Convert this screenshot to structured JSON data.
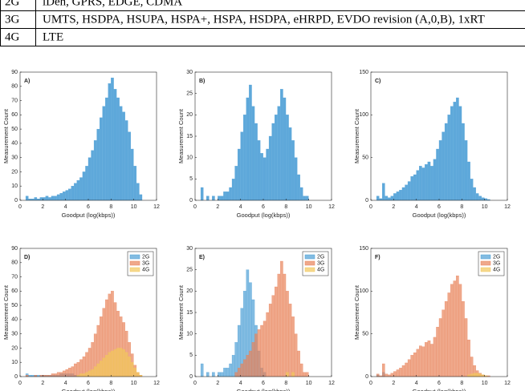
{
  "table": {
    "rows": [
      [
        "2G",
        "iDen, GPRS, EDGE, CDMA"
      ],
      [
        "3G",
        "UMTS, HSDPA, HSUPA, HSPA+, HSPA, HSDPA, eHRPD, EVDO revision (A,0,B), 1xRT"
      ],
      [
        "4G",
        "LTE"
      ]
    ]
  },
  "chart_data": [
    {
      "type": "histogram",
      "title": "A)",
      "xlabel": "Goodput (log(kbps))",
      "ylabel": "Measurement Count",
      "xlim": [
        0,
        12
      ],
      "xticks": [
        0,
        2,
        4,
        6,
        8,
        10,
        12
      ],
      "ylim": [
        0,
        90
      ],
      "yticks": [
        0,
        10,
        20,
        30,
        40,
        50,
        60,
        70,
        80,
        90
      ],
      "color": "#4d9fd6",
      "bins": [
        0.5,
        0.75,
        1,
        1.25,
        1.5,
        1.75,
        2,
        2.25,
        2.5,
        2.75,
        3,
        3.25,
        3.5,
        3.75,
        4,
        4.25,
        4.5,
        4.75,
        5,
        5.25,
        5.5,
        5.75,
        6,
        6.25,
        6.5,
        6.75,
        7,
        7.25,
        7.5,
        7.75,
        8,
        8.25,
        8.5,
        8.75,
        9,
        9.25,
        9.5,
        9.75,
        10,
        10.25,
        10.5,
        10.75
      ],
      "values": [
        3,
        1,
        1,
        2,
        1,
        2,
        2,
        3,
        2,
        3,
        3,
        4,
        5,
        6,
        7,
        8,
        10,
        12,
        14,
        16,
        20,
        24,
        30,
        35,
        42,
        50,
        58,
        66,
        72,
        82,
        86,
        78,
        72,
        66,
        62,
        56,
        48,
        36,
        24,
        12,
        4
      ]
    },
    {
      "type": "histogram",
      "title": "B)",
      "xlabel": "Goodput (log(kbps))",
      "ylabel": "Measurement Count",
      "xlim": [
        0,
        12
      ],
      "xticks": [
        0,
        2,
        4,
        6,
        8,
        10,
        12
      ],
      "ylim": [
        0,
        30
      ],
      "yticks": [
        0,
        5,
        10,
        15,
        20,
        25,
        30
      ],
      "color": "#4d9fd6",
      "bins": [
        0.5,
        0.75,
        1,
        1.25,
        1.5,
        1.75,
        2,
        2.25,
        2.5,
        2.75,
        3,
        3.25,
        3.5,
        3.75,
        4,
        4.25,
        4.5,
        4.75,
        5,
        5.25,
        5.5,
        5.75,
        6,
        6.25,
        6.5,
        6.75,
        7,
        7.25,
        7.5,
        7.75,
        8,
        8.25,
        8.5,
        8.75,
        9,
        9.25,
        9.5,
        9.75,
        10,
        10.25,
        10.5,
        10.75
      ],
      "values": [
        3,
        0,
        1,
        0,
        1,
        0,
        1,
        1,
        2,
        2,
        3,
        5,
        8,
        12,
        16,
        20,
        24,
        27,
        22,
        18,
        14,
        11,
        10,
        12,
        15,
        18,
        20,
        22,
        26,
        24,
        20,
        17,
        14,
        10,
        6,
        3,
        1,
        1,
        0,
        0,
        0
      ]
    },
    {
      "type": "histogram",
      "title": "C)",
      "xlabel": "Goodput (log(kbps))",
      "ylabel": "Measurement Count",
      "xlim": [
        0,
        12
      ],
      "xticks": [
        0,
        2,
        4,
        6,
        8,
        10,
        12
      ],
      "ylim": [
        0,
        150
      ],
      "yticks": [
        0,
        50,
        100,
        150
      ],
      "color": "#4d9fd6",
      "bins": [
        0.5,
        0.75,
        1,
        1.25,
        1.5,
        1.75,
        2,
        2.25,
        2.5,
        2.75,
        3,
        3.25,
        3.5,
        3.75,
        4,
        4.25,
        4.5,
        4.75,
        5,
        5.25,
        5.5,
        5.75,
        6,
        6.25,
        6.5,
        6.75,
        7,
        7.25,
        7.5,
        7.75,
        8,
        8.25,
        8.5,
        8.75,
        9,
        9.25,
        9.5,
        9.75,
        10,
        10.25,
        10.5,
        10.75
      ],
      "values": [
        5,
        2,
        20,
        5,
        3,
        5,
        8,
        10,
        12,
        15,
        18,
        22,
        28,
        30,
        35,
        40,
        38,
        42,
        45,
        40,
        48,
        60,
        70,
        80,
        90,
        100,
        110,
        115,
        120,
        110,
        90,
        70,
        45,
        25,
        15,
        8,
        5,
        3,
        2,
        1,
        0
      ]
    },
    {
      "type": "histogram",
      "title": "D)",
      "xlabel": "Goodput (log(kbps))",
      "ylabel": "Measurement Count",
      "xlim": [
        0,
        12
      ],
      "xticks": [
        0,
        2,
        4,
        6,
        8,
        10,
        12
      ],
      "ylim": [
        0,
        90
      ],
      "yticks": [
        0,
        10,
        20,
        30,
        40,
        50,
        60,
        70,
        80,
        90
      ],
      "legend": "upper right",
      "bins": [
        0.5,
        0.75,
        1,
        1.25,
        1.5,
        1.75,
        2,
        2.25,
        2.5,
        2.75,
        3,
        3.25,
        3.5,
        3.75,
        4,
        4.25,
        4.5,
        4.75,
        5,
        5.25,
        5.5,
        5.75,
        6,
        6.25,
        6.5,
        6.75,
        7,
        7.25,
        7.5,
        7.75,
        8,
        8.25,
        8.5,
        8.75,
        9,
        9.25,
        9.5,
        9.75,
        10,
        10.25,
        10.5,
        10.75
      ],
      "series": [
        {
          "name": "2G",
          "color": "#4d9fd6",
          "values": [
            2,
            1,
            1,
            1,
            1,
            1,
            1,
            1,
            1,
            1,
            1,
            1,
            2,
            2,
            2,
            2,
            2,
            1,
            1,
            0,
            0,
            0,
            0,
            0,
            0,
            0,
            0,
            0,
            0,
            0,
            0,
            0,
            0,
            0,
            0,
            0,
            0,
            0,
            0,
            0,
            0
          ]
        },
        {
          "name": "3G",
          "color": "#e8835a",
          "values": [
            1,
            0,
            0,
            1,
            0,
            1,
            1,
            1,
            1,
            2,
            2,
            3,
            3,
            4,
            5,
            6,
            7,
            9,
            10,
            12,
            14,
            17,
            20,
            24,
            30,
            36,
            42,
            48,
            54,
            58,
            60,
            52,
            46,
            42,
            38,
            32,
            24,
            16,
            8,
            3,
            1
          ]
        },
        {
          "name": "4G",
          "color": "#f2c85b",
          "values": [
            0,
            0,
            0,
            0,
            0,
            0,
            0,
            0,
            0,
            0,
            0,
            0,
            0,
            0,
            0,
            0,
            0,
            0,
            1,
            2,
            2,
            3,
            4,
            5,
            7,
            9,
            11,
            13,
            15,
            17,
            18,
            19,
            20,
            20,
            19,
            17,
            14,
            10,
            6,
            3,
            1
          ]
        }
      ]
    },
    {
      "type": "histogram",
      "title": "E)",
      "xlabel": "Goodput (log(kbps))",
      "ylabel": "Measurement Count",
      "xlim": [
        0,
        12
      ],
      "xticks": [
        0,
        2,
        4,
        6,
        8,
        10,
        12
      ],
      "ylim": [
        0,
        30
      ],
      "yticks": [
        0,
        5,
        10,
        15,
        20,
        25,
        30
      ],
      "legend": "upper right",
      "bins": [
        0.5,
        0.75,
        1,
        1.25,
        1.5,
        1.75,
        2,
        2.25,
        2.5,
        2.75,
        3,
        3.25,
        3.5,
        3.75,
        4,
        4.25,
        4.5,
        4.75,
        5,
        5.25,
        5.5,
        5.75,
        6,
        6.25,
        6.5,
        6.75,
        7,
        7.25,
        7.5,
        7.75,
        8,
        8.25,
        8.5,
        8.75,
        9,
        9.25,
        9.5,
        9.75,
        10,
        10.25,
        10.5,
        10.75
      ],
      "series": [
        {
          "name": "2G",
          "color": "#4d9fd6",
          "values": [
            3,
            0,
            1,
            0,
            1,
            0,
            1,
            1,
            2,
            2,
            3,
            5,
            8,
            12,
            16,
            20,
            25,
            22,
            18,
            12,
            6,
            2,
            1,
            0,
            0,
            0,
            0,
            0,
            0,
            0,
            0,
            0,
            0,
            0,
            0,
            0,
            0,
            0,
            0,
            0,
            0
          ]
        },
        {
          "name": "3G",
          "color": "#e8835a",
          "values": [
            0,
            0,
            0,
            0,
            0,
            0,
            0,
            0,
            0,
            0,
            0,
            0,
            1,
            2,
            3,
            4,
            5,
            6,
            8,
            10,
            11,
            12,
            13,
            15,
            17,
            19,
            21,
            24,
            27,
            24,
            20,
            17,
            14,
            10,
            6,
            3,
            1,
            1,
            0,
            0,
            0
          ]
        },
        {
          "name": "4G",
          "color": "#f2c85b",
          "values": [
            0,
            0,
            0,
            0,
            0,
            0,
            0,
            0,
            0,
            0,
            0,
            0,
            0,
            0,
            0,
            0,
            0,
            0,
            0,
            0,
            0,
            0,
            0,
            0,
            0,
            0,
            0,
            0,
            0,
            0,
            1,
            0,
            1,
            0,
            0,
            0,
            0,
            0,
            0,
            0,
            0
          ]
        }
      ]
    },
    {
      "type": "histogram",
      "title": "F)",
      "xlabel": "Goodput (log(kbps))",
      "ylabel": "Measurement Count",
      "xlim": [
        0,
        12
      ],
      "xticks": [
        0,
        2,
        4,
        6,
        8,
        10,
        12
      ],
      "ylim": [
        0,
        150
      ],
      "yticks": [
        0,
        50,
        100,
        150
      ],
      "legend": "upper right",
      "bins": [
        0.5,
        0.75,
        1,
        1.25,
        1.5,
        1.75,
        2,
        2.25,
        2.5,
        2.75,
        3,
        3.25,
        3.5,
        3.75,
        4,
        4.25,
        4.5,
        4.75,
        5,
        5.25,
        5.5,
        5.75,
        6,
        6.25,
        6.5,
        6.75,
        7,
        7.25,
        7.5,
        7.75,
        8,
        8.25,
        8.5,
        8.75,
        9,
        9.25,
        9.5,
        9.75,
        10,
        10.25,
        10.5,
        10.75
      ],
      "series": [
        {
          "name": "2G",
          "color": "#4d9fd6",
          "values": [
            2,
            0,
            5,
            0,
            0,
            0,
            0,
            0,
            0,
            0,
            0,
            0,
            0,
            0,
            0,
            0,
            0,
            0,
            0,
            0,
            0,
            0,
            0,
            0,
            0,
            0,
            0,
            0,
            0,
            0,
            0,
            0,
            0,
            0,
            0,
            0,
            0,
            0,
            0,
            0,
            0
          ]
        },
        {
          "name": "3G",
          "color": "#e8835a",
          "values": [
            3,
            1,
            15,
            3,
            2,
            4,
            6,
            8,
            10,
            13,
            16,
            20,
            25,
            28,
            32,
            36,
            35,
            40,
            42,
            38,
            46,
            58,
            68,
            78,
            88,
            98,
            108,
            112,
            118,
            108,
            88,
            68,
            43,
            23,
            13,
            7,
            4,
            2,
            1,
            1,
            0
          ]
        },
        {
          "name": "4G",
          "color": "#f2c85b",
          "values": [
            0,
            0,
            0,
            0,
            0,
            0,
            0,
            0,
            0,
            0,
            0,
            0,
            0,
            0,
            0,
            0,
            0,
            0,
            0,
            0,
            0,
            0,
            0,
            0,
            0,
            0,
            0,
            0,
            0,
            0,
            0,
            0,
            2,
            3,
            4,
            4,
            3,
            2,
            1,
            0,
            0
          ]
        }
      ]
    }
  ]
}
